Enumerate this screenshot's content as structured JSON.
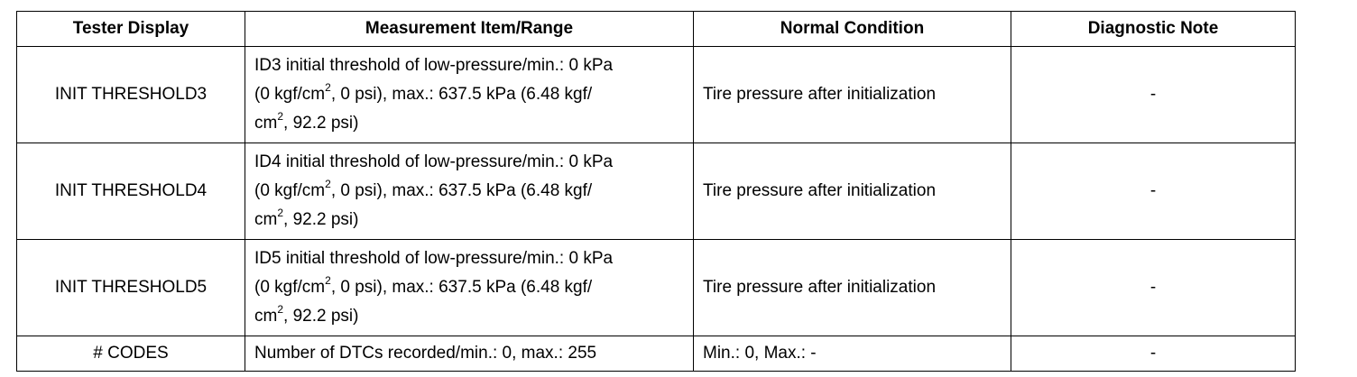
{
  "table": {
    "headers": [
      "Tester Display",
      "Measurement Item/Range",
      "Normal Condition",
      "Diagnostic Note"
    ],
    "rows": [
      {
        "display": "INIT THRESHOLD3",
        "range": {
          "line1": "ID3 initial threshold of low-pressure/min.: 0 kPa",
          "line2a": "(0 kgf/cm",
          "line2sup": "2",
          "line2b": ", 0 psi), max.: 637.5 kPa (6.48 kgf/",
          "line3a": "cm",
          "line3sup": "2",
          "line3b": ", 92.2 psi)"
        },
        "condition": "Tire pressure after initialization",
        "note": "-"
      },
      {
        "display": "INIT THRESHOLD4",
        "range": {
          "line1": "ID4 initial threshold of low-pressure/min.: 0 kPa",
          "line2a": "(0 kgf/cm",
          "line2sup": "2",
          "line2b": ", 0 psi), max.: 637.5 kPa (6.48 kgf/",
          "line3a": "cm",
          "line3sup": "2",
          "line3b": ", 92.2 psi)"
        },
        "condition": "Tire pressure after initialization",
        "note": "-"
      },
      {
        "display": "INIT THRESHOLD5",
        "range": {
          "line1": "ID5 initial threshold of low-pressure/min.: 0 kPa",
          "line2a": "(0 kgf/cm",
          "line2sup": "2",
          "line2b": ", 0 psi), max.: 637.5 kPa (6.48 kgf/",
          "line3a": "cm",
          "line3sup": "2",
          "line3b": ", 92.2 psi)"
        },
        "condition": "Tire pressure after initialization",
        "note": "-"
      },
      {
        "display": "# CODES",
        "range_text": "Number of DTCs recorded/min.: 0, max.: 255",
        "condition": "Min.: 0, Max.: -",
        "note": "-"
      }
    ]
  }
}
